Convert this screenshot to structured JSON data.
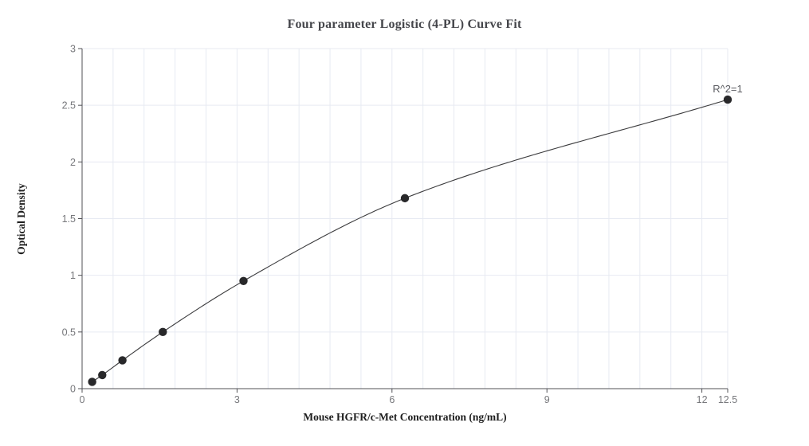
{
  "chart_data": {
    "type": "scatter",
    "title": "Four parameter Logistic (4-PL) Curve Fit",
    "xlabel": "Mouse HGFR/c-Met Concentration (ng/mL)",
    "ylabel": "Optical Density",
    "annotation": "R^2=1",
    "xlim": [
      0,
      12.5
    ],
    "ylim": [
      0,
      3
    ],
    "grid": "on",
    "legend": "none",
    "x_minor_grid_step": 0.6,
    "x_ticks": [
      {
        "value": 0,
        "label": "0"
      },
      {
        "value": 3,
        "label": "3"
      },
      {
        "value": 6,
        "label": "6"
      },
      {
        "value": 9,
        "label": "9"
      },
      {
        "value": 12,
        "label": "12"
      },
      {
        "value": 12.5,
        "label": "12.5"
      }
    ],
    "y_ticks": [
      {
        "value": 0,
        "label": "0"
      },
      {
        "value": 0.5,
        "label": "0.5"
      },
      {
        "value": 1,
        "label": "1"
      },
      {
        "value": 1.5,
        "label": "1.5"
      },
      {
        "value": 2,
        "label": "2"
      },
      {
        "value": 2.5,
        "label": "2.5"
      },
      {
        "value": 3,
        "label": "3"
      }
    ],
    "points": [
      {
        "x": 0.195,
        "y": 0.06
      },
      {
        "x": 0.39,
        "y": 0.12
      },
      {
        "x": 0.781,
        "y": 0.25
      },
      {
        "x": 1.563,
        "y": 0.5
      },
      {
        "x": 3.125,
        "y": 0.95
      },
      {
        "x": 6.25,
        "y": 1.68
      },
      {
        "x": 12.5,
        "y": 2.55
      }
    ],
    "colors": {
      "background": "#ffffff",
      "grid": "#e7eaf2",
      "axis": "#505055",
      "tick_text": "#76777b",
      "title_text": "#45464b",
      "axis_label_text": "#1e1e1e",
      "point": "#28282a",
      "line": "#3b3b3d",
      "annotation_text": "#5d5e63"
    }
  }
}
